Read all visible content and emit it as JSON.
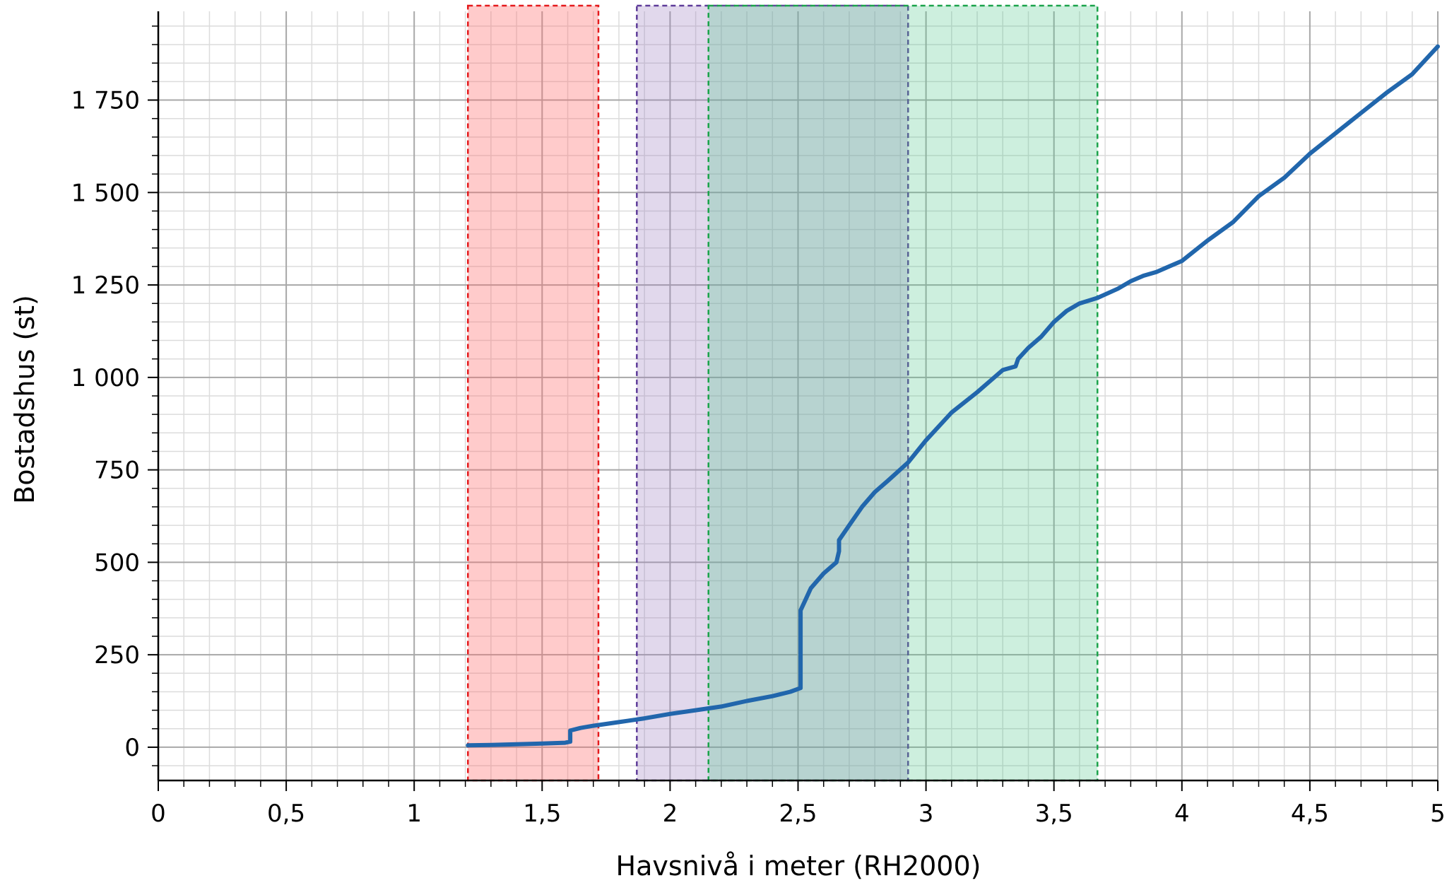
{
  "chart_data": {
    "type": "line",
    "title": "",
    "xlabel": "Havsnivå i meter (RH2000)",
    "ylabel": "Bostadshus (st)",
    "xlim": [
      0,
      5
    ],
    "ylim": [
      -90,
      1990
    ],
    "grid": true,
    "minor_grid": true,
    "x_ticks": [
      {
        "value": 0,
        "label": "0"
      },
      {
        "value": 0.5,
        "label": "0,5"
      },
      {
        "value": 1,
        "label": "1"
      },
      {
        "value": 1.5,
        "label": "1,5"
      },
      {
        "value": 2,
        "label": "2"
      },
      {
        "value": 2.5,
        "label": "2,5"
      },
      {
        "value": 3,
        "label": "3"
      },
      {
        "value": 3.5,
        "label": "3,5"
      },
      {
        "value": 4,
        "label": "4"
      },
      {
        "value": 4.5,
        "label": "4,5"
      },
      {
        "value": 5,
        "label": "5"
      }
    ],
    "y_ticks": [
      {
        "value": 0,
        "label": "0"
      },
      {
        "value": 250,
        "label": "250"
      },
      {
        "value": 500,
        "label": "500"
      },
      {
        "value": 750,
        "label": "750"
      },
      {
        "value": 1000,
        "label": "1 000"
      },
      {
        "value": 1250,
        "label": "1 250"
      },
      {
        "value": 1500,
        "label": "1 500"
      },
      {
        "value": 1750,
        "label": "1 750"
      }
    ],
    "bands": [
      {
        "x0": 1.21,
        "x1": 1.72,
        "fill": "#ff6b6b",
        "opacity": 0.35,
        "border": "#e41a1c"
      },
      {
        "x0": 1.87,
        "x1": 2.93,
        "fill": "#9b7fc1",
        "opacity": 0.3,
        "border": "#5e3c99"
      },
      {
        "x0": 2.15,
        "x1": 3.67,
        "fill": "#4cc48a",
        "opacity": 0.28,
        "border": "#1aa34a"
      }
    ],
    "series": [
      {
        "color": "#2166ac",
        "x": [
          1.21,
          1.3,
          1.4,
          1.5,
          1.59,
          1.61,
          1.61,
          1.65,
          1.7,
          1.8,
          1.9,
          2.0,
          2.1,
          2.2,
          2.3,
          2.4,
          2.47,
          2.51,
          2.51,
          2.53,
          2.55,
          2.6,
          2.65,
          2.66,
          2.66,
          2.7,
          2.75,
          2.8,
          2.85,
          2.93,
          3.0,
          3.1,
          3.2,
          3.3,
          3.35,
          3.36,
          3.4,
          3.45,
          3.5,
          3.55,
          3.6,
          3.67,
          3.75,
          3.8,
          3.85,
          3.9,
          3.95,
          4.0,
          4.1,
          4.2,
          4.3,
          4.4,
          4.5,
          4.6,
          4.7,
          4.8,
          4.9,
          5.0
        ],
        "y": [
          5,
          6,
          8,
          10,
          12,
          15,
          45,
          52,
          58,
          68,
          78,
          90,
          100,
          110,
          125,
          138,
          150,
          160,
          370,
          400,
          430,
          470,
          500,
          530,
          560,
          600,
          650,
          690,
          720,
          770,
          830,
          905,
          960,
          1020,
          1030,
          1050,
          1080,
          1110,
          1150,
          1180,
          1200,
          1215,
          1240,
          1260,
          1275,
          1285,
          1300,
          1315,
          1370,
          1420,
          1490,
          1540,
          1605,
          1660,
          1715,
          1770,
          1820,
          1895
        ]
      }
    ]
  }
}
